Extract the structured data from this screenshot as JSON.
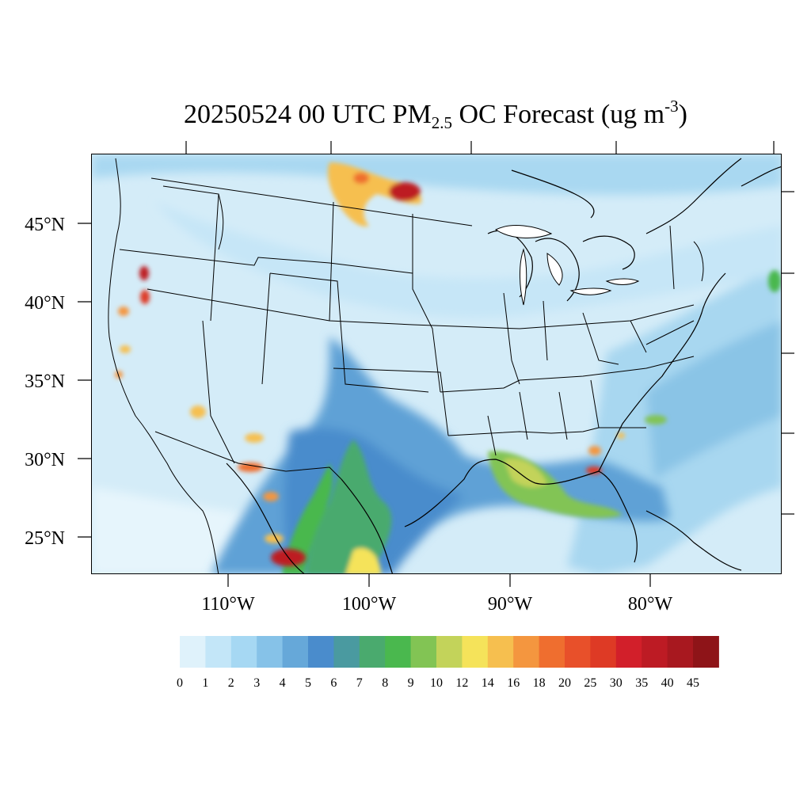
{
  "title": {
    "prefix": "20250524 00 UTC PM",
    "subscript": "2.5",
    "middle": " OC Forecast (ug m",
    "superscript": "-3",
    "suffix": ")"
  },
  "lat_labels": [
    "45°N",
    "40°N",
    "35°N",
    "30°N",
    "25°N"
  ],
  "lon_labels": [
    "110°W",
    "100°W",
    "90°W",
    "80°W"
  ],
  "colorbar": {
    "levels": [
      "0",
      "1",
      "2",
      "3",
      "4",
      "5",
      "6",
      "7",
      "8",
      "9",
      "10",
      "12",
      "14",
      "16",
      "18",
      "20",
      "25",
      "30",
      "35",
      "40",
      "45"
    ],
    "colors": [
      "#dff2fb",
      "#c3e6f8",
      "#a6d8f3",
      "#86c2e8",
      "#66a8d9",
      "#4a8ccc",
      "#4a9aa0",
      "#4aaa6e",
      "#4ab84e",
      "#82c454",
      "#c3d35a",
      "#f5e35a",
      "#f6bf4f",
      "#f4963f",
      "#ef6e2f",
      "#e8502a",
      "#de3a25",
      "#d21f2a",
      "#bd1b24",
      "#a8181f",
      "#8e1418"
    ]
  }
}
